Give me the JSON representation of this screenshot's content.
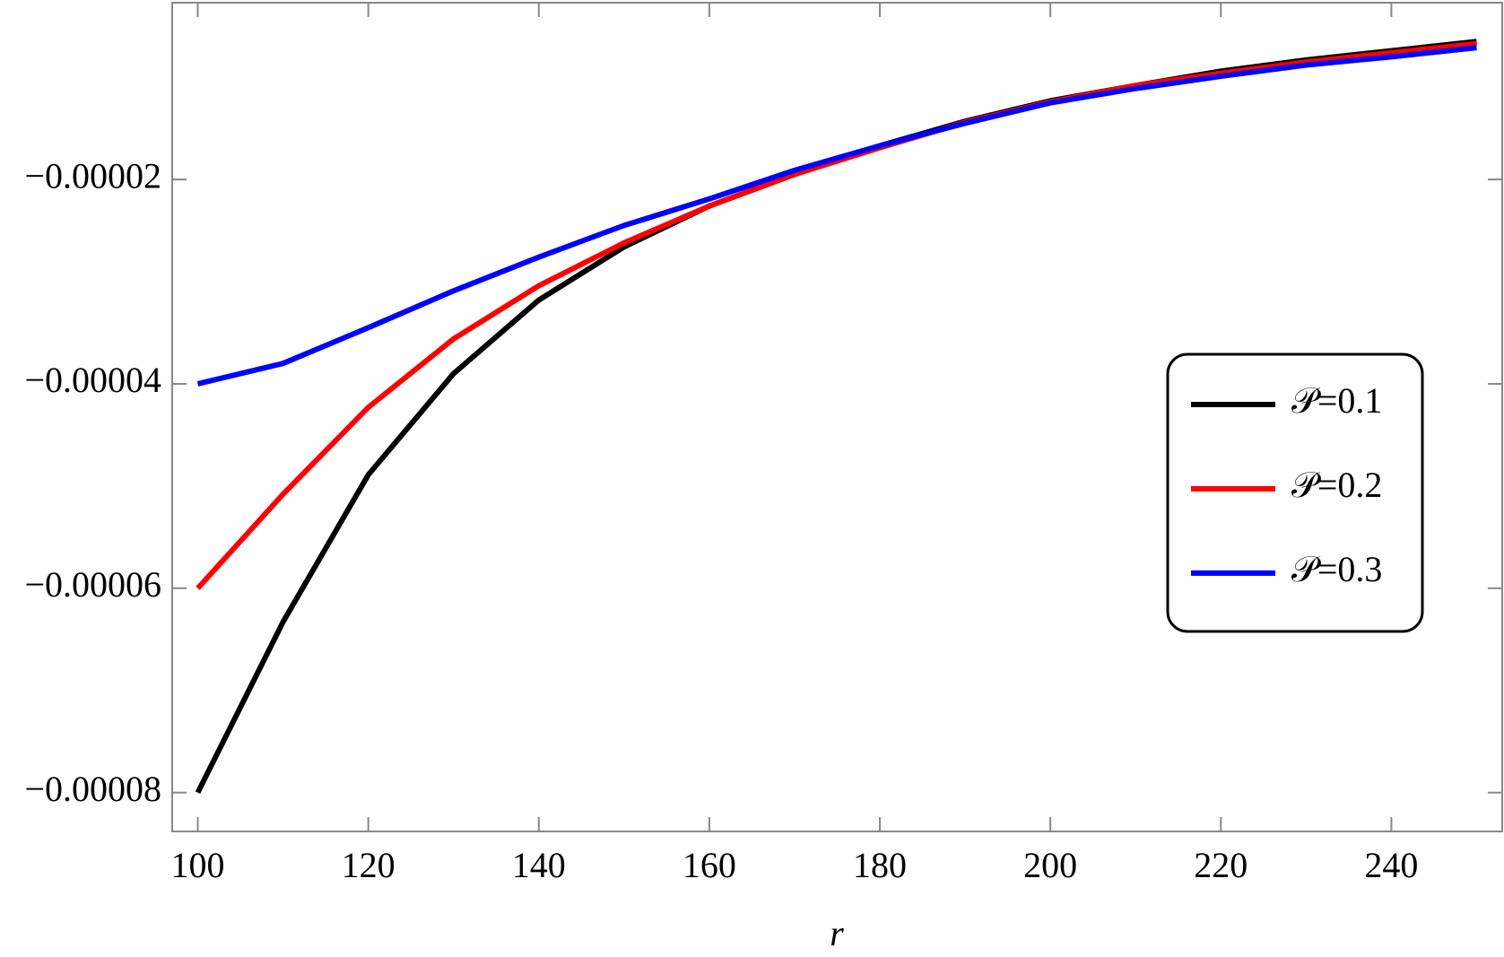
{
  "chart_data": {
    "type": "line",
    "x_label": "r",
    "x": [
      100,
      110,
      120,
      130,
      140,
      150,
      160,
      170,
      180,
      190,
      200,
      210,
      220,
      230,
      240,
      250
    ],
    "series": [
      {
        "name": "𝒫=0.1",
        "color": "#000000",
        "values": [
          -8e-05,
          -6.33e-05,
          -4.89e-05,
          -3.9e-05,
          -3.18e-05,
          -2.66e-05,
          -2.26e-05,
          -1.95e-05,
          -1.67e-05,
          -1.43e-05,
          -1.23e-05,
          -1.08e-05,
          -9.4e-06,
          -8.3e-06,
          -7.4e-06,
          -6.5e-06
        ]
      },
      {
        "name": "𝒫=0.2",
        "color": "#ff0000",
        "values": [
          -6e-05,
          -5.08e-05,
          -4.23e-05,
          -3.56e-05,
          -3.04e-05,
          -2.62e-05,
          -2.26e-05,
          -1.95e-05,
          -1.69e-05,
          -1.44e-05,
          -1.24e-05,
          -1.08e-05,
          -9.6e-06,
          -8.5e-06,
          -7.6e-06,
          -6.7e-06
        ]
      },
      {
        "name": "𝒫=0.3",
        "color": "#0000ff",
        "values": [
          -4e-05,
          -3.8e-05,
          -3.45e-05,
          -3.09e-05,
          -2.76e-05,
          -2.45e-05,
          -2.19e-05,
          -1.91e-05,
          -1.67e-05,
          -1.45e-05,
          -1.25e-05,
          -1.11e-05,
          -9.9e-06,
          -8.8e-06,
          -8e-06,
          -7.1e-06
        ]
      }
    ],
    "xlim": [
      97,
      253
    ],
    "ylim": [
      -8.38e-05,
      -2.7e-06
    ],
    "xticks": [
      100,
      120,
      140,
      160,
      180,
      200,
      220,
      240
    ],
    "yticks": [
      {
        "value": -2e-05,
        "label": "−0.00002"
      },
      {
        "value": -4e-05,
        "label": "−0.00004"
      },
      {
        "value": -6e-05,
        "label": "−0.00006"
      },
      {
        "value": -8e-05,
        "label": "−0.00008"
      }
    ],
    "legend": "right"
  }
}
